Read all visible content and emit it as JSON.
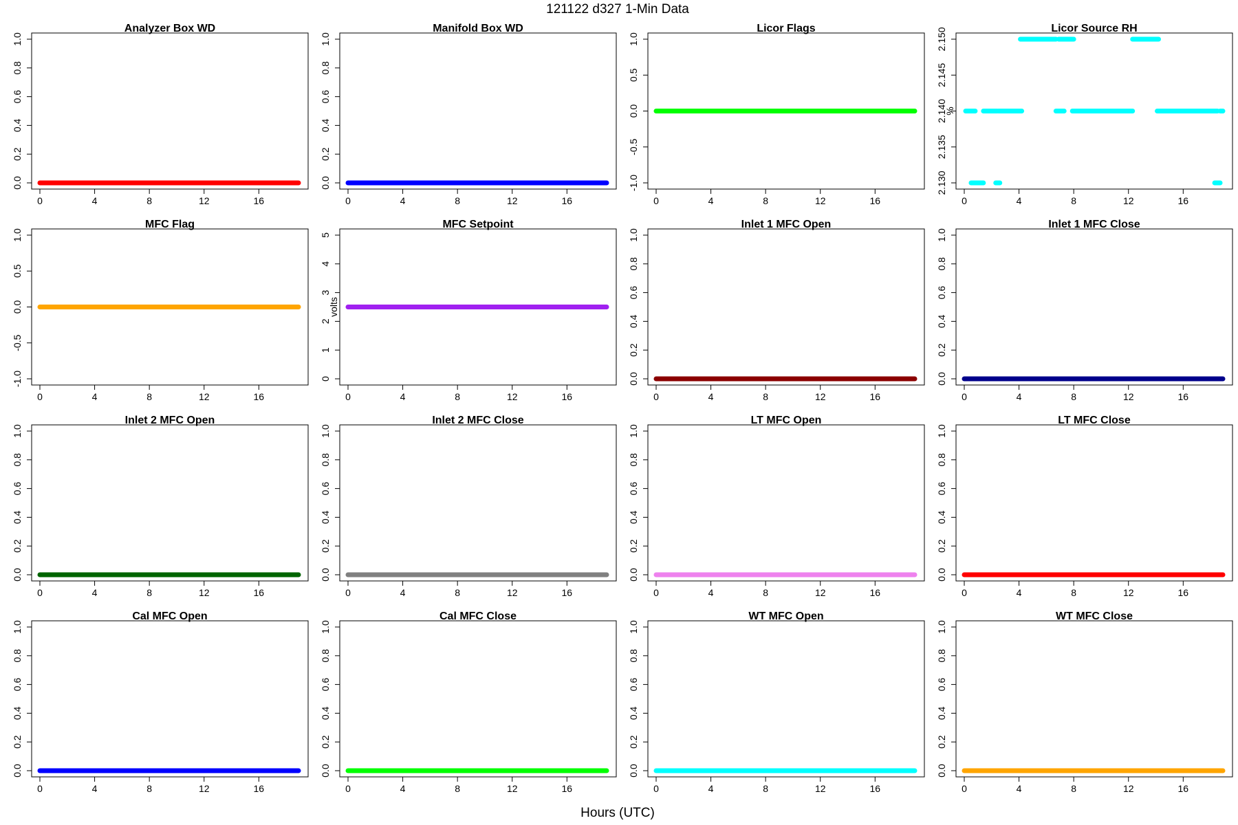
{
  "main_title": "121122   d327   1-Min Data",
  "xlabel": "Hours (UTC)",
  "chart_data": [
    {
      "type": "scatter",
      "title": "Analyzer Box WD",
      "ylabel": "",
      "color": "#ff0000",
      "xlim": [
        0,
        19
      ],
      "ylim": [
        0,
        1
      ],
      "xticks": [
        0,
        4,
        8,
        12,
        16
      ],
      "yticks": [
        "0.0",
        "0.2",
        "0.4",
        "0.6",
        "0.8",
        "1.0"
      ],
      "series": [
        {
          "x": [
            0,
            18.9
          ],
          "y": [
            0,
            0
          ]
        }
      ]
    },
    {
      "type": "scatter",
      "title": "Manifold Box WD",
      "ylabel": "",
      "color": "#0000ff",
      "xlim": [
        0,
        19
      ],
      "ylim": [
        0,
        1
      ],
      "xticks": [
        0,
        4,
        8,
        12,
        16
      ],
      "yticks": [
        "0.0",
        "0.2",
        "0.4",
        "0.6",
        "0.8",
        "1.0"
      ],
      "series": [
        {
          "x": [
            0,
            18.9
          ],
          "y": [
            0,
            0
          ]
        }
      ]
    },
    {
      "type": "scatter",
      "title": "Licor Flags",
      "ylabel": "",
      "color": "#00ff00",
      "xlim": [
        0,
        19
      ],
      "ylim": [
        -1,
        1
      ],
      "xticks": [
        0,
        4,
        8,
        12,
        16
      ],
      "yticks": [
        "-1.0",
        "-0.5",
        "0.0",
        "0.5",
        "1.0"
      ],
      "series": [
        {
          "x": [
            0,
            18.9
          ],
          "y": [
            0,
            0
          ]
        }
      ]
    },
    {
      "type": "scatter",
      "title": "Licor Source RH",
      "ylabel": "%",
      "color": "#00ffff",
      "xlim": [
        0,
        19
      ],
      "ylim": [
        2.13,
        2.15
      ],
      "xticks": [
        0,
        4,
        8,
        12,
        16
      ],
      "yticks": [
        "2.130",
        "2.135",
        "2.140",
        "2.145",
        "2.150"
      ],
      "series": [
        {
          "x": [
            0.1,
            0.8
          ],
          "y": [
            2.14,
            2.14
          ]
        },
        {
          "x": [
            0.5,
            1.4
          ],
          "y": [
            2.13,
            2.13
          ]
        },
        {
          "x": [
            1.4,
            2.4
          ],
          "y": [
            2.14,
            2.14
          ]
        },
        {
          "x": [
            2.3,
            2.6
          ],
          "y": [
            2.13,
            2.13
          ]
        },
        {
          "x": [
            2.5,
            4.2
          ],
          "y": [
            2.14,
            2.14
          ]
        },
        {
          "x": [
            4.1,
            6.7
          ],
          "y": [
            2.15,
            2.15
          ]
        },
        {
          "x": [
            6.7,
            7.3
          ],
          "y": [
            2.14,
            2.14
          ]
        },
        {
          "x": [
            6.9,
            8.0
          ],
          "y": [
            2.15,
            2.15
          ]
        },
        {
          "x": [
            7.9,
            12.3
          ],
          "y": [
            2.14,
            2.14
          ]
        },
        {
          "x": [
            12.3,
            14.2
          ],
          "y": [
            2.15,
            2.15
          ]
        },
        {
          "x": [
            14.1,
            18.5
          ],
          "y": [
            2.14,
            2.14
          ]
        },
        {
          "x": [
            18.3,
            18.7
          ],
          "y": [
            2.13,
            2.13
          ]
        },
        {
          "x": [
            18.7,
            18.9
          ],
          "y": [
            2.14,
            2.14
          ]
        }
      ]
    },
    {
      "type": "scatter",
      "title": "MFC Flag",
      "ylabel": "",
      "color": "#ffa500",
      "xlim": [
        0,
        19
      ],
      "ylim": [
        -1,
        1
      ],
      "xticks": [
        0,
        4,
        8,
        12,
        16
      ],
      "yticks": [
        "-1.0",
        "-0.5",
        "0.0",
        "0.5",
        "1.0"
      ],
      "series": [
        {
          "x": [
            0,
            18.9
          ],
          "y": [
            0,
            0
          ]
        }
      ]
    },
    {
      "type": "scatter",
      "title": "MFC Setpoint",
      "ylabel": "volts",
      "color": "#a020f0",
      "xlim": [
        0,
        19
      ],
      "ylim": [
        0,
        5
      ],
      "xticks": [
        0,
        4,
        8,
        12,
        16
      ],
      "yticks": [
        "0",
        "1",
        "2",
        "3",
        "4",
        "5"
      ],
      "series": [
        {
          "x": [
            0,
            18.9
          ],
          "y": [
            2.5,
            2.5
          ]
        }
      ]
    },
    {
      "type": "scatter",
      "title": "Inlet 1 MFC Open",
      "ylabel": "",
      "color": "#8b0000",
      "xlim": [
        0,
        19
      ],
      "ylim": [
        0,
        1
      ],
      "xticks": [
        0,
        4,
        8,
        12,
        16
      ],
      "yticks": [
        "0.0",
        "0.2",
        "0.4",
        "0.6",
        "0.8",
        "1.0"
      ],
      "series": [
        {
          "x": [
            0,
            18.9
          ],
          "y": [
            0,
            0
          ]
        }
      ]
    },
    {
      "type": "scatter",
      "title": "Inlet 1 MFC Close",
      "ylabel": "",
      "color": "#00008b",
      "xlim": [
        0,
        19
      ],
      "ylim": [
        0,
        1
      ],
      "xticks": [
        0,
        4,
        8,
        12,
        16
      ],
      "yticks": [
        "0.0",
        "0.2",
        "0.4",
        "0.6",
        "0.8",
        "1.0"
      ],
      "series": [
        {
          "x": [
            0,
            18.9
          ],
          "y": [
            0,
            0
          ]
        }
      ]
    },
    {
      "type": "scatter",
      "title": "Inlet 2 MFC Open",
      "ylabel": "",
      "color": "#006400",
      "xlim": [
        0,
        19
      ],
      "ylim": [
        0,
        1
      ],
      "xticks": [
        0,
        4,
        8,
        12,
        16
      ],
      "yticks": [
        "0.0",
        "0.2",
        "0.4",
        "0.6",
        "0.8",
        "1.0"
      ],
      "series": [
        {
          "x": [
            0,
            18.9
          ],
          "y": [
            0,
            0
          ]
        }
      ]
    },
    {
      "type": "scatter",
      "title": "Inlet 2 MFC Close",
      "ylabel": "",
      "color": "#808080",
      "xlim": [
        0,
        19
      ],
      "ylim": [
        0,
        1
      ],
      "xticks": [
        0,
        4,
        8,
        12,
        16
      ],
      "yticks": [
        "0.0",
        "0.2",
        "0.4",
        "0.6",
        "0.8",
        "1.0"
      ],
      "series": [
        {
          "x": [
            0,
            18.9
          ],
          "y": [
            0,
            0
          ]
        }
      ]
    },
    {
      "type": "scatter",
      "title": "LT MFC Open",
      "ylabel": "",
      "color": "#ee82ee",
      "xlim": [
        0,
        19
      ],
      "ylim": [
        0,
        1
      ],
      "xticks": [
        0,
        4,
        8,
        12,
        16
      ],
      "yticks": [
        "0.0",
        "0.2",
        "0.4",
        "0.6",
        "0.8",
        "1.0"
      ],
      "series": [
        {
          "x": [
            0,
            18.9
          ],
          "y": [
            0,
            0
          ]
        }
      ]
    },
    {
      "type": "scatter",
      "title": "LT MFC Close",
      "ylabel": "",
      "color": "#ff0000",
      "xlim": [
        0,
        19
      ],
      "ylim": [
        0,
        1
      ],
      "xticks": [
        0,
        4,
        8,
        12,
        16
      ],
      "yticks": [
        "0.0",
        "0.2",
        "0.4",
        "0.6",
        "0.8",
        "1.0"
      ],
      "series": [
        {
          "x": [
            0,
            18.9
          ],
          "y": [
            0,
            0
          ]
        }
      ]
    },
    {
      "type": "scatter",
      "title": "Cal MFC Open",
      "ylabel": "",
      "color": "#0000ff",
      "xlim": [
        0,
        19
      ],
      "ylim": [
        0,
        1
      ],
      "xticks": [
        0,
        4,
        8,
        12,
        16
      ],
      "yticks": [
        "0.0",
        "0.2",
        "0.4",
        "0.6",
        "0.8",
        "1.0"
      ],
      "series": [
        {
          "x": [
            0,
            18.9
          ],
          "y": [
            0,
            0
          ]
        }
      ]
    },
    {
      "type": "scatter",
      "title": "Cal MFC Close",
      "ylabel": "",
      "color": "#00ff00",
      "xlim": [
        0,
        19
      ],
      "ylim": [
        0,
        1
      ],
      "xticks": [
        0,
        4,
        8,
        12,
        16
      ],
      "yticks": [
        "0.0",
        "0.2",
        "0.4",
        "0.6",
        "0.8",
        "1.0"
      ],
      "series": [
        {
          "x": [
            0,
            18.9
          ],
          "y": [
            0,
            0
          ]
        }
      ]
    },
    {
      "type": "scatter",
      "title": "WT MFC Open",
      "ylabel": "",
      "color": "#00ffff",
      "xlim": [
        0,
        19
      ],
      "ylim": [
        0,
        1
      ],
      "xticks": [
        0,
        4,
        8,
        12,
        16
      ],
      "yticks": [
        "0.0",
        "0.2",
        "0.4",
        "0.6",
        "0.8",
        "1.0"
      ],
      "series": [
        {
          "x": [
            0,
            18.9
          ],
          "y": [
            0,
            0
          ]
        }
      ]
    },
    {
      "type": "scatter",
      "title": "WT MFC Close",
      "ylabel": "",
      "color": "#ffa500",
      "xlim": [
        0,
        19
      ],
      "ylim": [
        0,
        1
      ],
      "xticks": [
        0,
        4,
        8,
        12,
        16
      ],
      "yticks": [
        "0.0",
        "0.2",
        "0.4",
        "0.6",
        "0.8",
        "1.0"
      ],
      "series": [
        {
          "x": [
            0,
            18.9
          ],
          "y": [
            0,
            0
          ]
        }
      ]
    }
  ]
}
